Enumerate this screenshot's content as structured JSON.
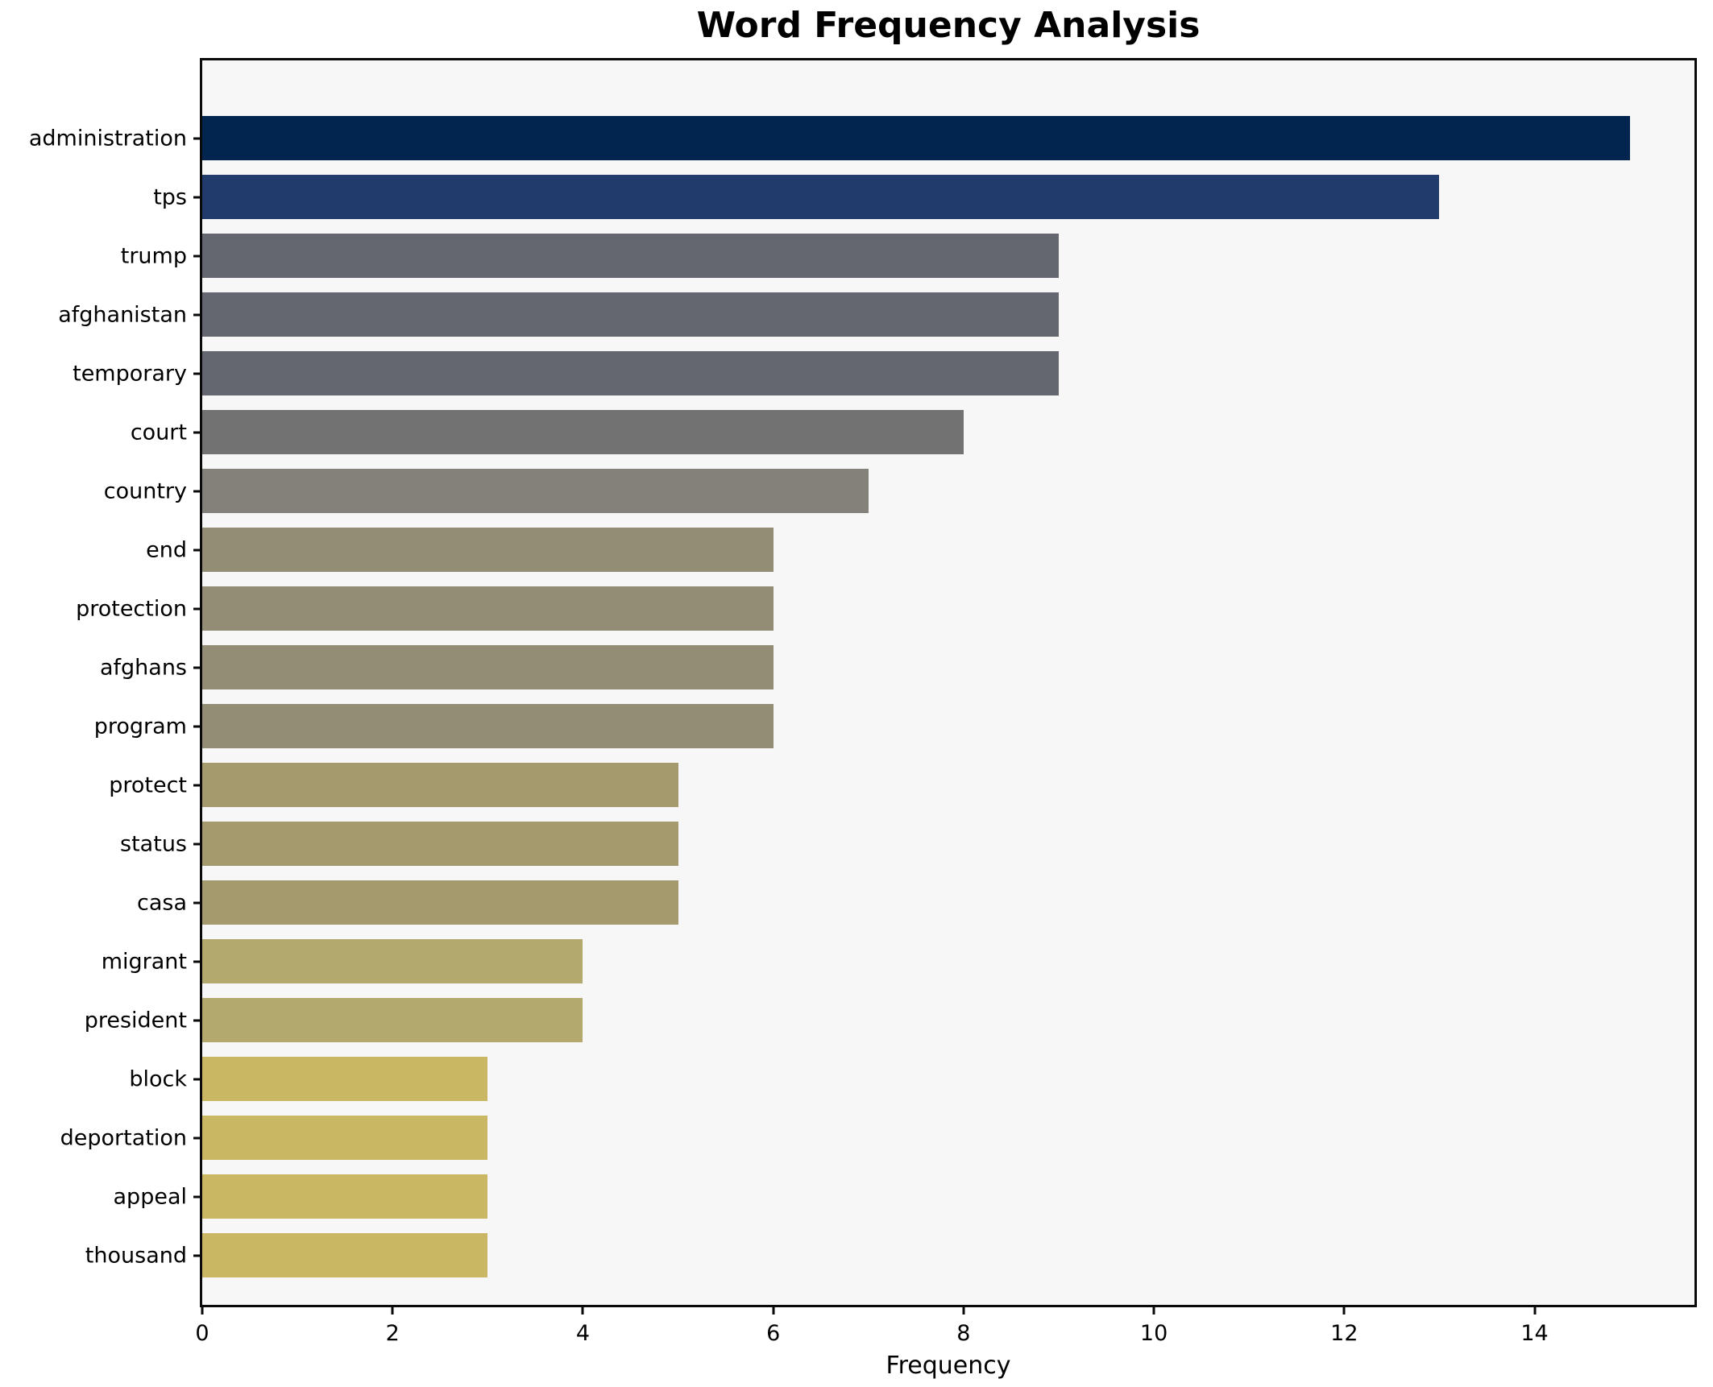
{
  "chart_data": {
    "type": "bar",
    "orientation": "horizontal",
    "title": "Word Frequency Analysis",
    "xlabel": "Frequency",
    "ylabel": "",
    "categories": [
      "administration",
      "tps",
      "trump",
      "afghanistan",
      "temporary",
      "court",
      "country",
      "end",
      "protection",
      "afghans",
      "program",
      "protect",
      "status",
      "casa",
      "migrant",
      "president",
      "block",
      "deportation",
      "appeal",
      "thousand"
    ],
    "values": [
      15,
      13,
      9,
      9,
      9,
      8,
      7,
      6,
      6,
      6,
      6,
      5,
      5,
      5,
      4,
      4,
      3,
      3,
      3,
      3
    ],
    "bar_colors": [
      "#01254e",
      "#223b6d",
      "#64676f",
      "#64676f",
      "#64676f",
      "#727272",
      "#84817a",
      "#938d75",
      "#938d75",
      "#938d75",
      "#938d75",
      "#a59a6e",
      "#a59a6e",
      "#a59a6e",
      "#b4a96d",
      "#b4a96d",
      "#c9b763",
      "#c9b763",
      "#c9b763",
      "#c9b763"
    ],
    "x_ticks": [
      0,
      2,
      4,
      6,
      8,
      10,
      12,
      14
    ],
    "xlim": [
      0,
      15.68
    ],
    "grid": false,
    "legend": null,
    "plot_background": "#f7f7f8",
    "figure_background": "#ffffff",
    "frame_color": "#0a0a0a"
  }
}
